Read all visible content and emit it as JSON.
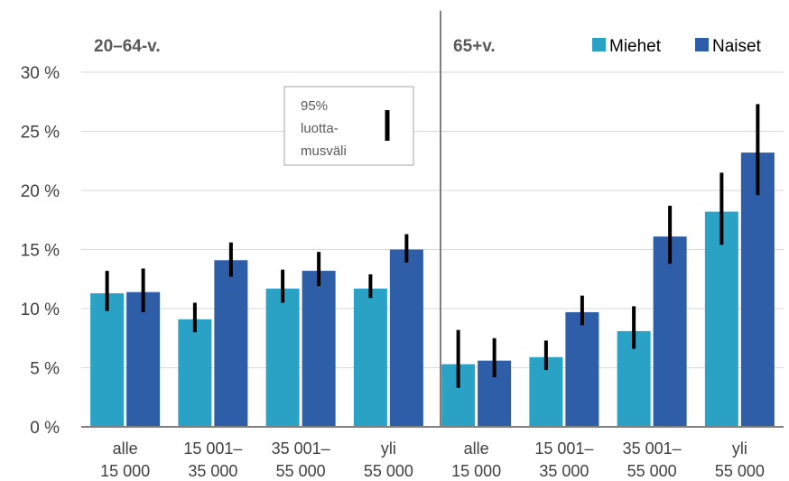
{
  "colors": {
    "miehet": "#2aa2c6",
    "naiset": "#2f5ea8",
    "error_bar": "#000000",
    "axis": "#808080",
    "grid": "#d9d9d9",
    "divider": "#808080"
  },
  "legend": {
    "miehet_label": "Miehet",
    "naiset_label": "Naiset",
    "ci_label_lines": [
      "95%",
      "luotta-",
      "musväli"
    ]
  },
  "chart_data": {
    "type": "bar",
    "ylim": [
      0,
      30
    ],
    "yticks": [
      0,
      5,
      10,
      15,
      20,
      25,
      30
    ],
    "ytick_labels": [
      "0 %",
      "5 %",
      "10 %",
      "15 %",
      "20 %",
      "25 %",
      "30 %"
    ],
    "grid": true,
    "legend_position": "top-right",
    "panels": [
      {
        "label": "20–64-v.",
        "categories": [
          [
            "alle",
            "15 000"
          ],
          [
            "15 001–",
            "35 000"
          ],
          [
            "35 001–",
            "55 000"
          ],
          [
            "yli",
            "55 000"
          ]
        ],
        "series": [
          {
            "name": "Miehet",
            "values": [
              11.3,
              9.1,
              11.7,
              11.7
            ],
            "ci_low": [
              9.8,
              8.0,
              10.5,
              10.9
            ],
            "ci_high": [
              13.2,
              10.5,
              13.3,
              12.9
            ]
          },
          {
            "name": "Naiset",
            "values": [
              11.4,
              14.1,
              13.2,
              15.0
            ],
            "ci_low": [
              9.7,
              12.7,
              11.9,
              13.9
            ],
            "ci_high": [
              13.4,
              15.6,
              14.8,
              16.3
            ]
          }
        ]
      },
      {
        "label": "65+v.",
        "categories": [
          [
            "alle",
            "15 000"
          ],
          [
            "15 001–",
            "35 000"
          ],
          [
            "35 001–",
            "55 000"
          ],
          [
            "yli",
            "55 000"
          ]
        ],
        "series": [
          {
            "name": "Miehet",
            "values": [
              5.3,
              5.9,
              8.1,
              18.2
            ],
            "ci_low": [
              3.3,
              4.8,
              6.6,
              15.4
            ],
            "ci_high": [
              8.2,
              7.3,
              10.2,
              21.5
            ]
          },
          {
            "name": "Naiset",
            "values": [
              5.6,
              9.7,
              16.1,
              23.2
            ],
            "ci_low": [
              4.2,
              8.6,
              13.8,
              19.6
            ],
            "ci_high": [
              7.5,
              11.1,
              18.7,
              27.3
            ]
          }
        ]
      }
    ]
  }
}
